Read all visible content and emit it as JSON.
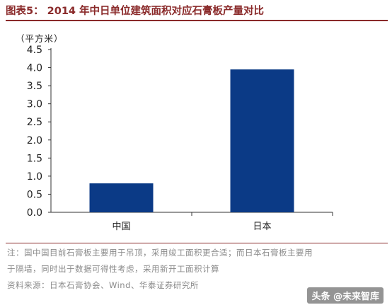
{
  "title": "图表5：  2014 年中日单位建筑面积对应石膏板产量对比",
  "unit_label": "（平方米）",
  "chart_data": {
    "type": "bar",
    "categories": [
      "中国",
      "日本"
    ],
    "values": [
      0.8,
      3.95
    ],
    "ylim": [
      0,
      4.5
    ],
    "yticks": [
      "0.0",
      "0.5",
      "1.0",
      "1.5",
      "2.0",
      "2.5",
      "3.0",
      "3.5",
      "4.0",
      "4.5"
    ],
    "ytick_values": [
      0,
      0.5,
      1,
      1.5,
      2,
      2.5,
      3,
      3.5,
      4,
      4.5
    ],
    "bar_color": "#0b3a86",
    "grid": false
  },
  "notes": {
    "line1": "注：国中国目前石膏板主要用于吊顶，采用竣工面积更合适；而日本石膏板主要用",
    "line2": "于隔墙，同时出于数据可得性考虑，采用新开工面积计算",
    "source": "资料来源：日本石膏协会、Wind、华泰证券研究所"
  },
  "watermark": "头条 @未来智库"
}
